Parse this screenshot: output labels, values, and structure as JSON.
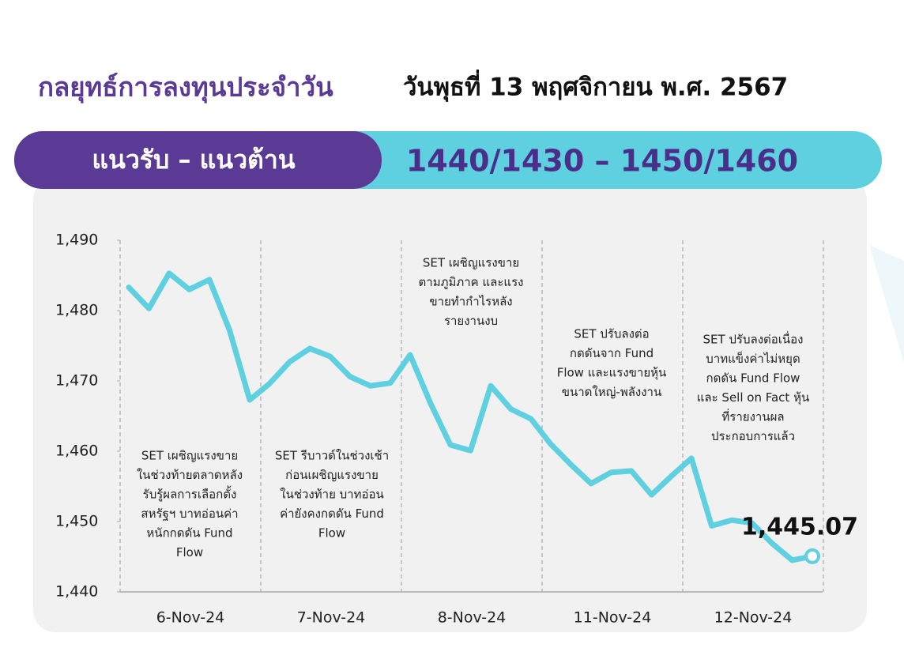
{
  "chart_data": {
    "type": "line",
    "title": "กลยุทธ์การลงทุนประจำวัน",
    "date": "วันพุธที่ 13 พฤศจิกายน พ.ศ. 2567",
    "range_label": "แนวรับ – แนวต้าน",
    "range_value": "1440/1430 – 1450/1460",
    "color": "#5fd0e0",
    "ylim": [
      1440,
      1490
    ],
    "yticks": [
      {
        "value": 1440,
        "label": "1,440"
      },
      {
        "value": 1450,
        "label": "1,450"
      },
      {
        "value": 1460,
        "label": "1,460"
      },
      {
        "value": 1470,
        "label": "1,470"
      },
      {
        "value": 1480,
        "label": "1,480"
      },
      {
        "value": 1490,
        "label": "1,490"
      }
    ],
    "days": [
      {
        "label": "6-Nov-24",
        "values": [
          1483.3,
          1480.3,
          1485.3,
          1483.0,
          1484.4,
          1477.2,
          1467.3
        ],
        "note": [
          "SET เผชิญแรงขาย",
          "ในช่วงท้ายตลาดหลัง",
          "รับรู้ผลการเลือกตั้ง",
          "สหรัฐฯ บาทอ่อนค่า",
          "หนักกดดัน Fund",
          "Flow"
        ]
      },
      {
        "label": "7-Nov-24",
        "values": [
          1469.6,
          1472.7,
          1474.6,
          1473.5,
          1470.6,
          1469.3,
          1469.7
        ],
        "note": [
          "SET รีบาวด์ในช่วงเช้า",
          "ก่อนเผชิญแรงขาย",
          "ในช่วงท้าย บาทอ่อน",
          "ค่ายังคงกดดัน Fund",
          "Flow"
        ]
      },
      {
        "label": "8-Nov-24",
        "values": [
          1473.7,
          1466.9,
          1460.9,
          1460.1,
          1469.3,
          1466.0,
          1464.6
        ],
        "note": [
          "SET เผชิญแรงขาย",
          "ตามภูมิภาค และแรง",
          "ขายทำกำไรหลัง",
          "รายงานงบ"
        ]
      },
      {
        "label": "11-Nov-24",
        "values": [
          1461.0,
          1458.1,
          1455.4,
          1457.0,
          1457.2,
          1453.8,
          1456.5
        ],
        "note": [
          "SET ปรับลงต่อ",
          "กดดันจาก Fund",
          "Flow และแรงขายหุ้น",
          "ขนาดใหญ่-พลังงาน"
        ]
      },
      {
        "label": "12-Nov-24",
        "values": [
          1459.0,
          1449.4,
          1450.2,
          1449.8,
          1446.9,
          1444.5,
          1445.07
        ],
        "value_labels": [
          null,
          null,
          null,
          null,
          null,
          null,
          "1,445.07"
        ],
        "note": [
          "SET ปรับลงต่อเนื่อง",
          "บาทแข็งค่าไม่หยุด",
          "กดดัน Fund Flow",
          "และ Sell on Fact หุ้น",
          "ที่รายงานผล",
          "ประกอบการแล้ว"
        ]
      }
    ]
  }
}
